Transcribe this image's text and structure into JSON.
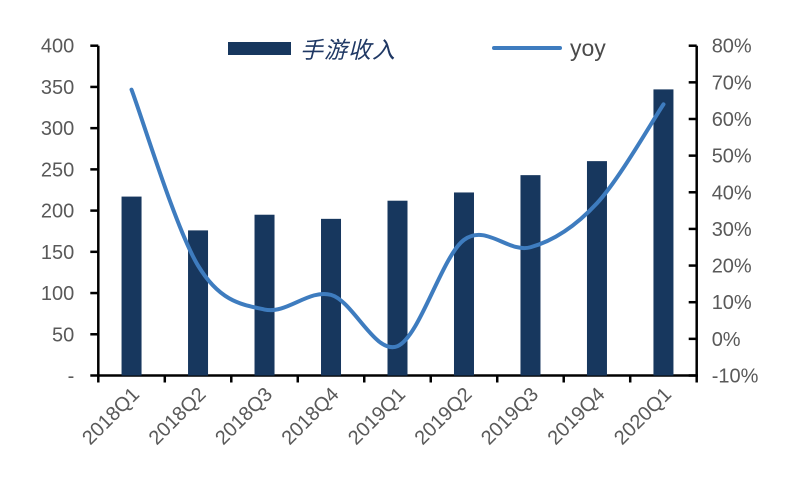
{
  "chart_data": {
    "type": "combo_bar_line",
    "title": "",
    "categories": [
      "2018Q1",
      "2018Q2",
      "2018Q3",
      "2018Q4",
      "2019Q1",
      "2019Q2",
      "2019Q3",
      "2019Q4",
      "2020Q1"
    ],
    "series": [
      {
        "name": "手游收入",
        "type": "bar",
        "axis": "left",
        "color": "#17375E",
        "values": [
          217,
          176,
          195,
          190,
          212,
          222,
          243,
          260,
          347
        ]
      },
      {
        "name": "yoy",
        "type": "line",
        "axis": "right",
        "color": "#3E7CBF",
        "values_pct": [
          68,
          20,
          8,
          12,
          -2,
          27,
          25,
          37,
          64
        ]
      }
    ],
    "left_axis": {
      "min": 0,
      "max": 400,
      "step": 50,
      "tick_labels": [
        "400",
        "350",
        "300",
        "250",
        "200",
        "150",
        "100",
        "50",
        "-"
      ]
    },
    "right_axis": {
      "min": -10,
      "max": 80,
      "step": 10,
      "unit": "%",
      "tick_labels": [
        "80%",
        "70%",
        "60%",
        "50%",
        "40%",
        "30%",
        "20%",
        "10%",
        "0%",
        "-10%"
      ]
    },
    "x_axis": {
      "tick_label_rotation": -45
    },
    "legend": {
      "position": "top",
      "entries": [
        "手游收入",
        "yoy"
      ]
    },
    "grid": false,
    "styles": {
      "background": "#FFFFFF",
      "axis_line_color": "#000000",
      "axis_label_color": "#595959",
      "x_label_color": "#595959",
      "legend_bar_label_color": "#1F3864",
      "legend_line_label_color": "#4A4A4A"
    }
  }
}
